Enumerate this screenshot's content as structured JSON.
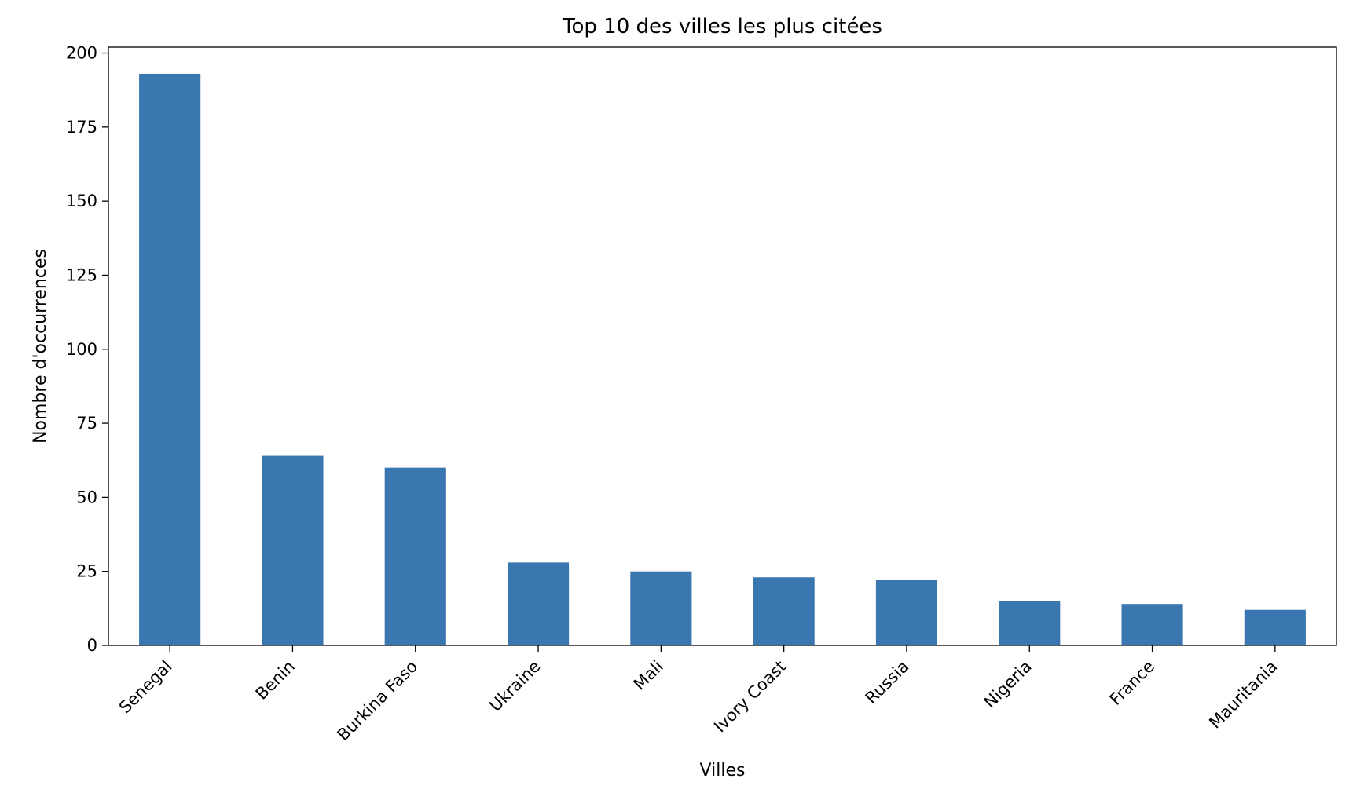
{
  "chart_data": {
    "type": "bar",
    "title": "Top 10 des villes les plus citées",
    "xlabel": "Villes",
    "ylabel": "Nombre d'occurrences",
    "categories": [
      "Senegal",
      "Benin",
      "Burkina Faso",
      "Ukraine",
      "Mali",
      "Ivory Coast",
      "Russia",
      "Nigeria",
      "France",
      "Mauritania"
    ],
    "values": [
      193,
      64,
      60,
      28,
      25,
      23,
      22,
      15,
      14,
      12
    ],
    "ylim": [
      0,
      202
    ],
    "yticks": [
      0,
      25,
      50,
      75,
      100,
      125,
      150,
      175,
      200
    ],
    "grid": false,
    "legend": "none",
    "bar_color": "#3a76af"
  }
}
